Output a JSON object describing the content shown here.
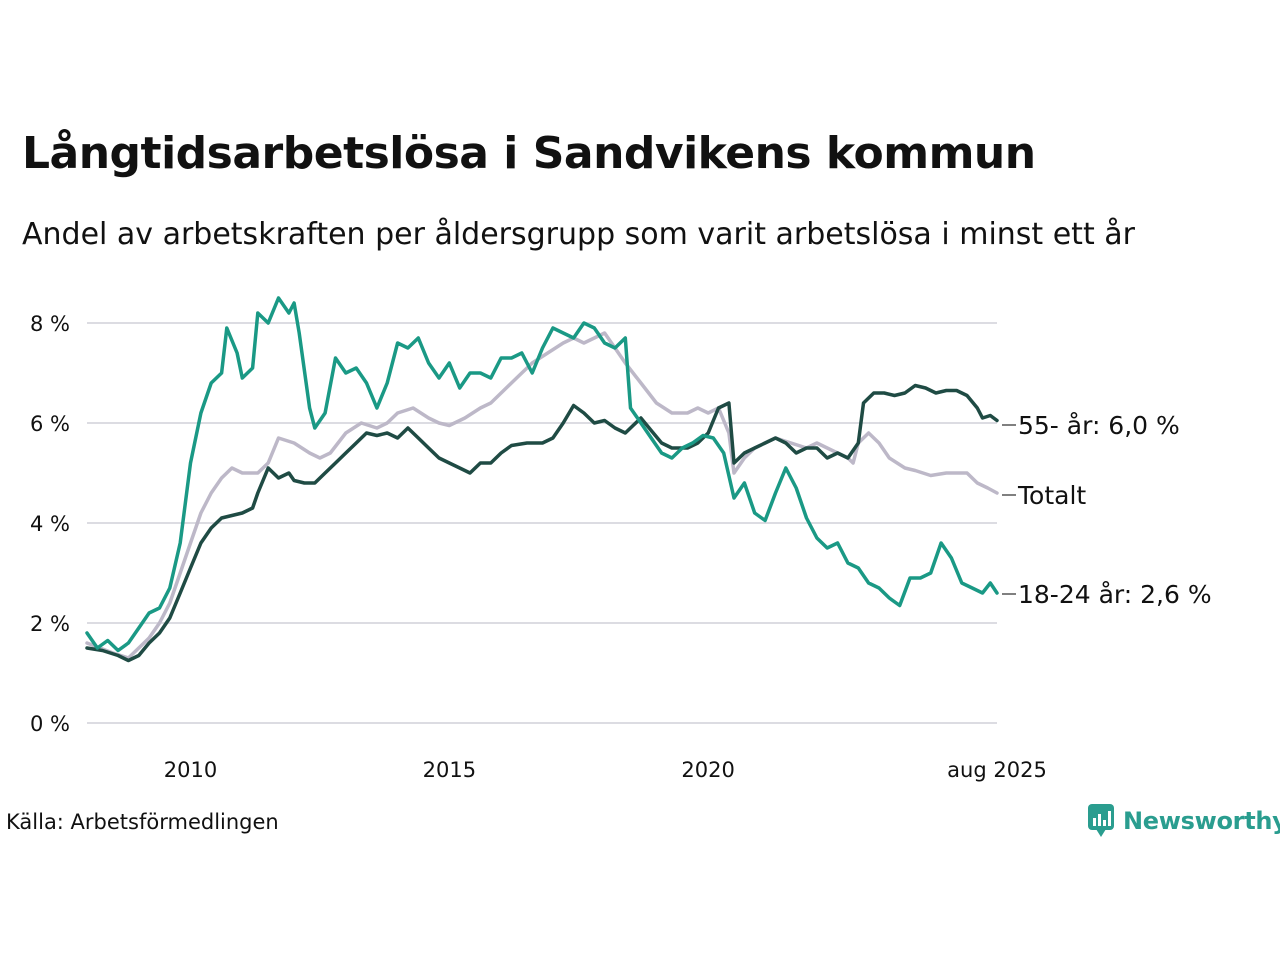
{
  "title": "Långtidsarbetslösa i Sandvikens kommun",
  "subtitle": "Andel av arbetskraften per åldersgrupp som varit arbetslösa i minst ett år",
  "source": "Källa: Arbetsförmedlingen",
  "logo": {
    "text": "Newsworthy",
    "icon": "newsworthy-logo-icon",
    "color": "#2a9d8f"
  },
  "chart_data": {
    "type": "line",
    "title": "Långtidsarbetslösa i Sandvikens kommun",
    "subtitle": "Andel av arbetskraften per åldersgrupp som varit arbetslösa i minst ett år",
    "xlabel": "",
    "ylabel": "",
    "x_range": [
      2008.0,
      2025.58
    ],
    "ylim": [
      0,
      8.5
    ],
    "y_ticks": [
      0,
      2,
      4,
      6,
      8
    ],
    "y_tick_labels": [
      "0 %",
      "2 %",
      "4 %",
      "6 %",
      "8 %"
    ],
    "x_ticks": [
      2010,
      2015,
      2020,
      2025.58
    ],
    "x_tick_labels": [
      "2010",
      "2015",
      "2020",
      "aug 2025"
    ],
    "grid": true,
    "legend": "end-of-line labels",
    "series": [
      {
        "name": "Totalt",
        "end_label": "Totalt",
        "color": "#bdb8c8",
        "points": [
          [
            2008.0,
            1.6
          ],
          [
            2008.5,
            1.4
          ],
          [
            2008.8,
            1.3
          ],
          [
            2009.0,
            1.5
          ],
          [
            2009.2,
            1.7
          ],
          [
            2009.4,
            2.0
          ],
          [
            2009.6,
            2.4
          ],
          [
            2009.8,
            3.0
          ],
          [
            2010.0,
            3.6
          ],
          [
            2010.2,
            4.2
          ],
          [
            2010.4,
            4.6
          ],
          [
            2010.6,
            4.9
          ],
          [
            2010.8,
            5.1
          ],
          [
            2011.0,
            5.0
          ],
          [
            2011.3,
            5.0
          ],
          [
            2011.5,
            5.2
          ],
          [
            2011.7,
            5.7
          ],
          [
            2012.0,
            5.6
          ],
          [
            2012.3,
            5.4
          ],
          [
            2012.5,
            5.3
          ],
          [
            2012.7,
            5.4
          ],
          [
            2013.0,
            5.8
          ],
          [
            2013.3,
            6.0
          ],
          [
            2013.6,
            5.9
          ],
          [
            2013.8,
            6.0
          ],
          [
            2014.0,
            6.2
          ],
          [
            2014.3,
            6.3
          ],
          [
            2014.6,
            6.1
          ],
          [
            2014.8,
            6.0
          ],
          [
            2015.0,
            5.95
          ],
          [
            2015.3,
            6.1
          ],
          [
            2015.6,
            6.3
          ],
          [
            2015.8,
            6.4
          ],
          [
            2016.0,
            6.6
          ],
          [
            2016.3,
            6.9
          ],
          [
            2016.6,
            7.2
          ],
          [
            2016.9,
            7.4
          ],
          [
            2017.2,
            7.6
          ],
          [
            2017.4,
            7.7
          ],
          [
            2017.6,
            7.6
          ],
          [
            2017.8,
            7.7
          ],
          [
            2018.0,
            7.8
          ],
          [
            2018.2,
            7.5
          ],
          [
            2018.4,
            7.2
          ],
          [
            2018.7,
            6.8
          ],
          [
            2019.0,
            6.4
          ],
          [
            2019.3,
            6.2
          ],
          [
            2019.6,
            6.2
          ],
          [
            2019.8,
            6.3
          ],
          [
            2020.0,
            6.2
          ],
          [
            2020.2,
            6.3
          ],
          [
            2020.4,
            5.8
          ],
          [
            2020.5,
            5.0
          ],
          [
            2020.7,
            5.3
          ],
          [
            2020.9,
            5.5
          ],
          [
            2021.1,
            5.6
          ],
          [
            2021.3,
            5.7
          ],
          [
            2021.6,
            5.6
          ],
          [
            2021.9,
            5.5
          ],
          [
            2022.1,
            5.6
          ],
          [
            2022.3,
            5.5
          ],
          [
            2022.5,
            5.4
          ],
          [
            2022.7,
            5.3
          ],
          [
            2022.8,
            5.2
          ],
          [
            2022.9,
            5.6
          ],
          [
            2023.1,
            5.8
          ],
          [
            2023.3,
            5.6
          ],
          [
            2023.5,
            5.3
          ],
          [
            2023.8,
            5.1
          ],
          [
            2024.0,
            5.05
          ],
          [
            2024.3,
            4.95
          ],
          [
            2024.6,
            5.0
          ],
          [
            2024.9,
            5.0
          ],
          [
            2025.0,
            5.0
          ],
          [
            2025.2,
            4.8
          ],
          [
            2025.4,
            4.7
          ],
          [
            2025.58,
            4.6
          ]
        ]
      },
      {
        "name": "55- år",
        "end_label": "55- år: 6,0 %",
        "color": "#1f4b44",
        "points": [
          [
            2008.0,
            1.5
          ],
          [
            2008.3,
            1.45
          ],
          [
            2008.6,
            1.35
          ],
          [
            2008.8,
            1.25
          ],
          [
            2009.0,
            1.35
          ],
          [
            2009.2,
            1.6
          ],
          [
            2009.4,
            1.8
          ],
          [
            2009.6,
            2.1
          ],
          [
            2009.8,
            2.6
          ],
          [
            2010.0,
            3.1
          ],
          [
            2010.2,
            3.6
          ],
          [
            2010.4,
            3.9
          ],
          [
            2010.6,
            4.1
          ],
          [
            2010.8,
            4.15
          ],
          [
            2011.0,
            4.2
          ],
          [
            2011.2,
            4.3
          ],
          [
            2011.3,
            4.6
          ],
          [
            2011.5,
            5.1
          ],
          [
            2011.7,
            4.9
          ],
          [
            2011.9,
            5.0
          ],
          [
            2012.0,
            4.85
          ],
          [
            2012.2,
            4.8
          ],
          [
            2012.4,
            4.8
          ],
          [
            2012.6,
            5.0
          ],
          [
            2012.8,
            5.2
          ],
          [
            2013.0,
            5.4
          ],
          [
            2013.2,
            5.6
          ],
          [
            2013.4,
            5.8
          ],
          [
            2013.6,
            5.75
          ],
          [
            2013.8,
            5.8
          ],
          [
            2014.0,
            5.7
          ],
          [
            2014.2,
            5.9
          ],
          [
            2014.4,
            5.7
          ],
          [
            2014.6,
            5.5
          ],
          [
            2014.8,
            5.3
          ],
          [
            2015.0,
            5.2
          ],
          [
            2015.2,
            5.1
          ],
          [
            2015.4,
            5.0
          ],
          [
            2015.6,
            5.2
          ],
          [
            2015.8,
            5.2
          ],
          [
            2016.0,
            5.4
          ],
          [
            2016.2,
            5.55
          ],
          [
            2016.5,
            5.6
          ],
          [
            2016.8,
            5.6
          ],
          [
            2017.0,
            5.7
          ],
          [
            2017.2,
            6.0
          ],
          [
            2017.4,
            6.35
          ],
          [
            2017.6,
            6.2
          ],
          [
            2017.8,
            6.0
          ],
          [
            2018.0,
            6.05
          ],
          [
            2018.2,
            5.9
          ],
          [
            2018.4,
            5.8
          ],
          [
            2018.7,
            6.1
          ],
          [
            2018.9,
            5.85
          ],
          [
            2019.1,
            5.6
          ],
          [
            2019.3,
            5.5
          ],
          [
            2019.6,
            5.5
          ],
          [
            2019.8,
            5.6
          ],
          [
            2020.0,
            5.8
          ],
          [
            2020.2,
            6.3
          ],
          [
            2020.4,
            6.4
          ],
          [
            2020.5,
            5.2
          ],
          [
            2020.7,
            5.4
          ],
          [
            2020.9,
            5.5
          ],
          [
            2021.1,
            5.6
          ],
          [
            2021.3,
            5.7
          ],
          [
            2021.5,
            5.6
          ],
          [
            2021.7,
            5.4
          ],
          [
            2021.9,
            5.5
          ],
          [
            2022.1,
            5.5
          ],
          [
            2022.3,
            5.3
          ],
          [
            2022.5,
            5.4
          ],
          [
            2022.7,
            5.3
          ],
          [
            2022.9,
            5.6
          ],
          [
            2023.0,
            6.4
          ],
          [
            2023.2,
            6.6
          ],
          [
            2023.4,
            6.6
          ],
          [
            2023.6,
            6.55
          ],
          [
            2023.8,
            6.6
          ],
          [
            2024.0,
            6.75
          ],
          [
            2024.2,
            6.7
          ],
          [
            2024.4,
            6.6
          ],
          [
            2024.6,
            6.65
          ],
          [
            2024.8,
            6.65
          ],
          [
            2025.0,
            6.55
          ],
          [
            2025.2,
            6.3
          ],
          [
            2025.3,
            6.1
          ],
          [
            2025.45,
            6.15
          ],
          [
            2025.58,
            6.05
          ]
        ]
      },
      {
        "name": "18-24 år",
        "end_label": "18-24 år: 2,6 %",
        "color": "#1a9985",
        "points": [
          [
            2008.0,
            1.8
          ],
          [
            2008.2,
            1.5
          ],
          [
            2008.4,
            1.65
          ],
          [
            2008.6,
            1.45
          ],
          [
            2008.8,
            1.6
          ],
          [
            2009.0,
            1.9
          ],
          [
            2009.2,
            2.2
          ],
          [
            2009.4,
            2.3
          ],
          [
            2009.6,
            2.7
          ],
          [
            2009.8,
            3.6
          ],
          [
            2010.0,
            5.2
          ],
          [
            2010.2,
            6.2
          ],
          [
            2010.4,
            6.8
          ],
          [
            2010.6,
            7.0
          ],
          [
            2010.7,
            7.9
          ],
          [
            2010.9,
            7.4
          ],
          [
            2011.0,
            6.9
          ],
          [
            2011.2,
            7.1
          ],
          [
            2011.3,
            8.2
          ],
          [
            2011.5,
            8.0
          ],
          [
            2011.7,
            8.5
          ],
          [
            2011.9,
            8.2
          ],
          [
            2012.0,
            8.4
          ],
          [
            2012.1,
            7.8
          ],
          [
            2012.3,
            6.3
          ],
          [
            2012.4,
            5.9
          ],
          [
            2012.6,
            6.2
          ],
          [
            2012.8,
            7.3
          ],
          [
            2013.0,
            7.0
          ],
          [
            2013.2,
            7.1
          ],
          [
            2013.4,
            6.8
          ],
          [
            2013.6,
            6.3
          ],
          [
            2013.8,
            6.8
          ],
          [
            2014.0,
            7.6
          ],
          [
            2014.2,
            7.5
          ],
          [
            2014.4,
            7.7
          ],
          [
            2014.6,
            7.2
          ],
          [
            2014.8,
            6.9
          ],
          [
            2015.0,
            7.2
          ],
          [
            2015.2,
            6.7
          ],
          [
            2015.4,
            7.0
          ],
          [
            2015.6,
            7.0
          ],
          [
            2015.8,
            6.9
          ],
          [
            2016.0,
            7.3
          ],
          [
            2016.2,
            7.3
          ],
          [
            2016.4,
            7.4
          ],
          [
            2016.6,
            7.0
          ],
          [
            2016.8,
            7.5
          ],
          [
            2017.0,
            7.9
          ],
          [
            2017.2,
            7.8
          ],
          [
            2017.4,
            7.7
          ],
          [
            2017.6,
            8.0
          ],
          [
            2017.8,
            7.9
          ],
          [
            2018.0,
            7.6
          ],
          [
            2018.2,
            7.5
          ],
          [
            2018.4,
            7.7
          ],
          [
            2018.5,
            6.3
          ],
          [
            2018.7,
            6.0
          ],
          [
            2018.9,
            5.7
          ],
          [
            2019.1,
            5.4
          ],
          [
            2019.3,
            5.3
          ],
          [
            2019.5,
            5.5
          ],
          [
            2019.7,
            5.6
          ],
          [
            2019.9,
            5.75
          ],
          [
            2020.1,
            5.7
          ],
          [
            2020.3,
            5.4
          ],
          [
            2020.5,
            4.5
          ],
          [
            2020.7,
            4.8
          ],
          [
            2020.9,
            4.2
          ],
          [
            2021.1,
            4.05
          ],
          [
            2021.3,
            4.6
          ],
          [
            2021.5,
            5.1
          ],
          [
            2021.7,
            4.7
          ],
          [
            2021.9,
            4.1
          ],
          [
            2022.1,
            3.7
          ],
          [
            2022.3,
            3.5
          ],
          [
            2022.5,
            3.6
          ],
          [
            2022.7,
            3.2
          ],
          [
            2022.9,
            3.1
          ],
          [
            2023.1,
            2.8
          ],
          [
            2023.3,
            2.7
          ],
          [
            2023.5,
            2.5
          ],
          [
            2023.7,
            2.35
          ],
          [
            2023.9,
            2.9
          ],
          [
            2024.1,
            2.9
          ],
          [
            2024.3,
            3.0
          ],
          [
            2024.5,
            3.6
          ],
          [
            2024.7,
            3.3
          ],
          [
            2024.9,
            2.8
          ],
          [
            2025.1,
            2.7
          ],
          [
            2025.3,
            2.6
          ],
          [
            2025.45,
            2.8
          ],
          [
            2025.58,
            2.6
          ]
        ]
      }
    ]
  }
}
